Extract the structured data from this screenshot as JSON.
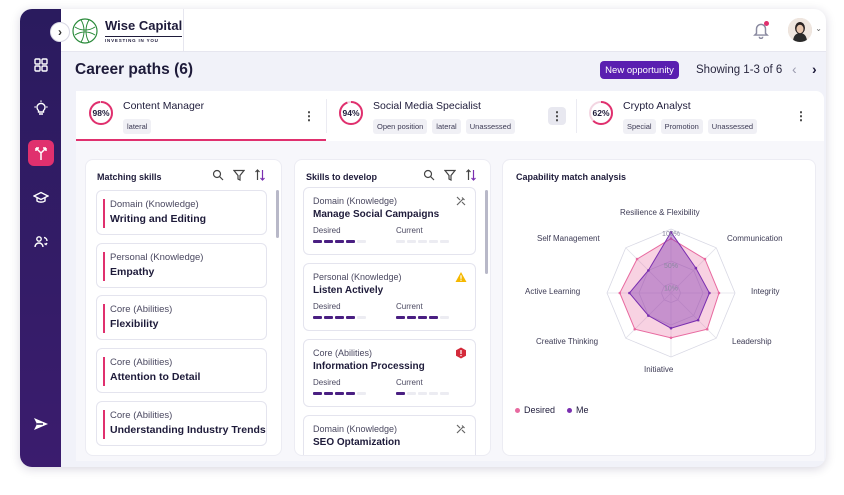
{
  "brand": {
    "name": "Wise Capital",
    "tagline": "INVESTING IN YOU"
  },
  "header": {
    "title": "Career paths (6)",
    "new_opportunity": "New opportunity",
    "showing": "Showing 1-3 of 6"
  },
  "sidebar": {
    "items": [
      {
        "icon": "dashboard-icon"
      },
      {
        "icon": "lightbulb-icon"
      },
      {
        "icon": "career-paths-icon",
        "active": true
      },
      {
        "icon": "graduation-cap-icon"
      },
      {
        "icon": "people-refresh-icon"
      }
    ]
  },
  "career_tabs": [
    {
      "percent": "98%",
      "value": 0.98,
      "title": "Content Manager",
      "tags": [
        "lateral"
      ]
    },
    {
      "percent": "94%",
      "value": 0.94,
      "title": "Social Media Specialist",
      "tags": [
        "Open position",
        "lateral",
        "Unassessed"
      ]
    },
    {
      "percent": "62%",
      "value": 0.62,
      "title": "Crypto Analyst",
      "tags": [
        "Special",
        "Promotion",
        "Unassessed"
      ]
    }
  ],
  "matching_skills": {
    "title": "Matching skills",
    "items": [
      {
        "category": "Domain (Knowledge)",
        "name": "Writing and Editing"
      },
      {
        "category": "Personal (Knowledge)",
        "name": "Empathy"
      },
      {
        "category": "Core (Abilities)",
        "name": "Flexibility"
      },
      {
        "category": "Core (Abilities)",
        "name": "Attention to Detail"
      },
      {
        "category": "Core (Abilities)",
        "name": "Understanding Industry Trends"
      }
    ]
  },
  "skills_to_develop": {
    "title": "Skills to develop",
    "desired_label": "Desired",
    "current_label": "Current",
    "items": [
      {
        "category": "Domain (Knowledge)",
        "name": "Manage Social Campaigns",
        "icon": "tools-icon",
        "desired": 4,
        "current": 0
      },
      {
        "category": "Personal (Knowledge)",
        "name": "Listen Actively",
        "icon": "warning-icon",
        "desired": 4,
        "current": 4
      },
      {
        "category": "Core (Abilities)",
        "name": "Information Processing",
        "icon": "alert-hexagon-icon",
        "desired": 4,
        "current": 1
      },
      {
        "category": "Domain (Knowledge)",
        "name": "SEO Optamization",
        "icon": "tools-icon",
        "desired": 4,
        "current": 0
      }
    ]
  },
  "chart_data": {
    "type": "radar",
    "title": "Capability match analysis",
    "axes": [
      "Resilience & Flexibility",
      "Communication",
      "Integrity",
      "Leadership",
      "Initiative",
      "Creative Thinking",
      "Active Learning",
      "Self Management"
    ],
    "ring_labels": [
      "100%",
      "50%",
      "10%"
    ],
    "series": [
      {
        "name": "Desired",
        "color": "#e86aa0",
        "values": [
          0.85,
          0.75,
          0.75,
          0.8,
          0.7,
          0.8,
          0.8,
          0.75
        ]
      },
      {
        "name": "Me",
        "color": "#7a2fb0",
        "values": [
          0.95,
          0.55,
          0.6,
          0.6,
          0.55,
          0.5,
          0.65,
          0.5
        ]
      }
    ]
  },
  "colors": {
    "accent": "#e0306e",
    "primary": "#5a1fb0",
    "sidebar": "#2a1b5e"
  }
}
